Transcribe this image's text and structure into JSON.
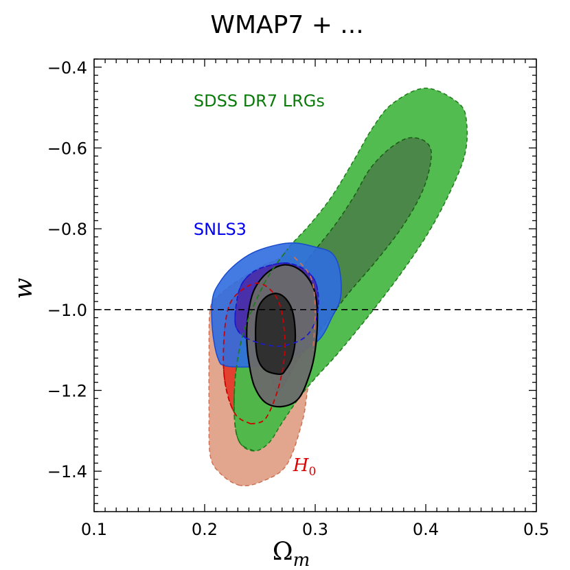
{
  "chart_data": {
    "type": "contour",
    "title": "WMAP7 + ...",
    "xlabel": "Ω",
    "xlabel_sub": "m",
    "ylabel": "w",
    "xlim": [
      0.1,
      0.5
    ],
    "ylim": [
      -1.5,
      -0.38
    ],
    "x_ticks": [
      0.1,
      0.2,
      0.3,
      0.4,
      0.5
    ],
    "x_tick_labels": [
      "0.1",
      "0.2",
      "0.3",
      "0.4",
      "0.5"
    ],
    "y_ticks": [
      -1.4,
      -1.2,
      -1.0,
      -0.8,
      -0.6,
      -0.4
    ],
    "y_tick_labels": [
      "−1.4",
      "−1.2",
      "−1.0",
      "−0.8",
      "−0.6",
      "−0.4"
    ],
    "reference_line": {
      "y": -1.0,
      "style": "dashed",
      "color": "#000000"
    },
    "series": [
      {
        "key": "h0",
        "name": "H",
        "name_sub": "0",
        "label_color": "#dd0000",
        "outer": {
          "fill": "#e0a088",
          "stroke": "#d07050",
          "dashed": true,
          "opacity": 0.95,
          "points": [
            [
              0.232,
              -1.435
            ],
            [
              0.214,
              -1.405
            ],
            [
              0.205,
              -1.36
            ],
            [
              0.204,
              -1.25
            ],
            [
              0.204,
              -1.12
            ],
            [
              0.205,
              -1.0
            ],
            [
              0.213,
              -0.965
            ],
            [
              0.232,
              -0.925
            ],
            [
              0.258,
              -0.885
            ],
            [
              0.281,
              -0.87
            ],
            [
              0.296,
              -0.92
            ],
            [
              0.3,
              -1.0
            ],
            [
              0.298,
              -1.1
            ],
            [
              0.293,
              -1.2
            ],
            [
              0.288,
              -1.28
            ],
            [
              0.274,
              -1.385
            ],
            [
              0.252,
              -1.425
            ]
          ]
        },
        "inner": {
          "fill": "#e23b2a",
          "stroke": "#cc0000",
          "dashed": true,
          "opacity": 0.95,
          "points": [
            [
              0.242,
              -1.283
            ],
            [
              0.228,
              -1.26
            ],
            [
              0.219,
              -1.19
            ],
            [
              0.217,
              -1.1
            ],
            [
              0.221,
              -1.0
            ],
            [
              0.232,
              -0.955
            ],
            [
              0.25,
              -0.935
            ],
            [
              0.266,
              -0.975
            ],
            [
              0.272,
              -1.05
            ],
            [
              0.272,
              -1.12
            ],
            [
              0.266,
              -1.2
            ],
            [
              0.255,
              -1.27
            ]
          ]
        }
      },
      {
        "key": "lrg",
        "name": "SDSS DR7 LRGs",
        "label_color": "#0a7a0a",
        "outer": {
          "fill": "#4cba4a",
          "stroke": "#1f7a1a",
          "dashed": true,
          "opacity": 0.97,
          "points": [
            [
              0.245,
              -1.35
            ],
            [
              0.232,
              -1.33
            ],
            [
              0.227,
              -1.27
            ],
            [
              0.228,
              -1.16
            ],
            [
              0.236,
              -1.05
            ],
            [
              0.255,
              -0.93
            ],
            [
              0.275,
              -0.85
            ],
            [
              0.295,
              -0.79
            ],
            [
              0.315,
              -0.72
            ],
            [
              0.335,
              -0.63
            ],
            [
              0.352,
              -0.55
            ],
            [
              0.37,
              -0.49
            ],
            [
              0.4,
              -0.452
            ],
            [
              0.43,
              -0.49
            ],
            [
              0.437,
              -0.54
            ],
            [
              0.435,
              -0.62
            ],
            [
              0.42,
              -0.72
            ],
            [
              0.4,
              -0.82
            ],
            [
              0.375,
              -0.92
            ],
            [
              0.347,
              -1.02
            ],
            [
              0.32,
              -1.11
            ],
            [
              0.3,
              -1.17
            ],
            [
              0.285,
              -1.22
            ],
            [
              0.27,
              -1.28
            ],
            [
              0.258,
              -1.33
            ]
          ]
        },
        "inner": {
          "fill": "#4a8548",
          "stroke": "#1a5a15",
          "dashed": true,
          "opacity": 0.97,
          "points": [
            [
              0.265,
              -1.2
            ],
            [
              0.258,
              -1.12
            ],
            [
              0.262,
              -1.02
            ],
            [
              0.275,
              -0.95
            ],
            [
              0.295,
              -0.87
            ],
            [
              0.318,
              -0.79
            ],
            [
              0.335,
              -0.72
            ],
            [
              0.35,
              -0.65
            ],
            [
              0.368,
              -0.6
            ],
            [
              0.385,
              -0.575
            ],
            [
              0.4,
              -0.585
            ],
            [
              0.405,
              -0.62
            ],
            [
              0.398,
              -0.7
            ],
            [
              0.38,
              -0.79
            ],
            [
              0.355,
              -0.88
            ],
            [
              0.33,
              -0.96
            ],
            [
              0.305,
              -1.05
            ],
            [
              0.285,
              -1.12
            ],
            [
              0.275,
              -1.17
            ]
          ]
        }
      },
      {
        "key": "snls",
        "name": "SNLS3",
        "label_color": "#0000ee",
        "outer": {
          "fill": "#2f6de0",
          "stroke": "#1a4acc",
          "dashed": false,
          "opacity": 0.9,
          "points": [
            [
              0.22,
              -1.14
            ],
            [
              0.212,
              -1.12
            ],
            [
              0.207,
              -1.05
            ],
            [
              0.207,
              -0.975
            ],
            [
              0.213,
              -0.935
            ],
            [
              0.225,
              -0.895
            ],
            [
              0.243,
              -0.86
            ],
            [
              0.265,
              -0.84
            ],
            [
              0.282,
              -0.835
            ],
            [
              0.3,
              -0.845
            ],
            [
              0.315,
              -0.86
            ],
            [
              0.322,
              -0.9
            ],
            [
              0.323,
              -0.97
            ],
            [
              0.315,
              -1.02
            ],
            [
              0.305,
              -1.07
            ],
            [
              0.29,
              -1.1
            ],
            [
              0.272,
              -1.125
            ],
            [
              0.25,
              -1.14
            ]
          ]
        },
        "inner": {
          "fill": "#4a2aa6",
          "stroke": "#1a1acc",
          "dashed": true,
          "opacity": 0.9,
          "points": [
            [
              0.237,
              -1.07
            ],
            [
              0.228,
              -1.04
            ],
            [
              0.229,
              -0.98
            ],
            [
              0.234,
              -0.935
            ],
            [
              0.245,
              -0.905
            ],
            [
              0.26,
              -0.89
            ],
            [
              0.275,
              -0.885
            ],
            [
              0.29,
              -0.9
            ],
            [
              0.3,
              -0.93
            ],
            [
              0.303,
              -0.98
            ],
            [
              0.3,
              -1.03
            ],
            [
              0.29,
              -1.07
            ],
            [
              0.27,
              -1.09
            ],
            [
              0.252,
              -1.085
            ]
          ]
        }
      },
      {
        "key": "combined",
        "name": "",
        "outer": {
          "fill": "#6a6a6a",
          "stroke": "#000000",
          "dashed": false,
          "opacity": 0.95,
          "points": [
            [
              0.27,
              -1.24
            ],
            [
              0.255,
              -1.23
            ],
            [
              0.245,
              -1.19
            ],
            [
              0.24,
              -1.13
            ],
            [
              0.238,
              -1.06
            ],
            [
              0.24,
              -1.0
            ],
            [
              0.245,
              -0.95
            ],
            [
              0.256,
              -0.91
            ],
            [
              0.27,
              -0.89
            ],
            [
              0.282,
              -0.895
            ],
            [
              0.293,
              -0.92
            ],
            [
              0.3,
              -0.96
            ],
            [
              0.302,
              -1.02
            ],
            [
              0.3,
              -1.1
            ],
            [
              0.295,
              -1.16
            ],
            [
              0.285,
              -1.22
            ]
          ]
        },
        "inner": {
          "fill": "#2e2e2e",
          "stroke": "#000000",
          "dashed": false,
          "opacity": 0.97,
          "points": [
            [
              0.268,
              -1.16
            ],
            [
              0.255,
              -1.15
            ],
            [
              0.248,
              -1.12
            ],
            [
              0.246,
              -1.06
            ],
            [
              0.248,
              -1.0
            ],
            [
              0.255,
              -0.97
            ],
            [
              0.265,
              -0.96
            ],
            [
              0.274,
              -0.975
            ],
            [
              0.28,
              -1.01
            ],
            [
              0.282,
              -1.07
            ],
            [
              0.279,
              -1.12
            ],
            [
              0.273,
              -1.15
            ]
          ]
        }
      }
    ],
    "overlay_lines": [
      {
        "color": "#cc0000",
        "dashed": true,
        "points": [
          [
            0.242,
            -1.283
          ],
          [
            0.228,
            -1.26
          ],
          [
            0.219,
            -1.19
          ],
          [
            0.217,
            -1.1
          ],
          [
            0.221,
            -1.0
          ],
          [
            0.232,
            -0.955
          ],
          [
            0.25,
            -0.935
          ],
          [
            0.266,
            -0.975
          ],
          [
            0.272,
            -1.05
          ],
          [
            0.272,
            -1.12
          ],
          [
            0.266,
            -1.2
          ],
          [
            0.255,
            -1.27
          ],
          [
            0.242,
            -1.283
          ]
        ]
      },
      {
        "color": "#1a1acc",
        "dashed": true,
        "points": [
          [
            0.237,
            -1.07
          ],
          [
            0.228,
            -1.04
          ],
          [
            0.229,
            -0.98
          ],
          [
            0.234,
            -0.935
          ],
          [
            0.245,
            -0.905
          ],
          [
            0.26,
            -0.89
          ],
          [
            0.275,
            -0.885
          ],
          [
            0.29,
            -0.9
          ],
          [
            0.3,
            -0.93
          ],
          [
            0.303,
            -0.98
          ],
          [
            0.3,
            -1.03
          ],
          [
            0.29,
            -1.07
          ],
          [
            0.27,
            -1.09
          ],
          [
            0.252,
            -1.085
          ],
          [
            0.237,
            -1.07
          ]
        ]
      },
      {
        "color": "#1f7a1a",
        "dashed": true,
        "points": [
          [
            0.245,
            -1.35
          ],
          [
            0.232,
            -1.33
          ],
          [
            0.227,
            -1.27
          ],
          [
            0.228,
            -1.16
          ],
          [
            0.236,
            -1.05
          ],
          [
            0.255,
            -0.93
          ],
          [
            0.275,
            -0.85
          ]
        ]
      },
      {
        "color": "#d07050",
        "dashed": true,
        "points": [
          [
            0.281,
            -0.87
          ],
          [
            0.296,
            -0.92
          ],
          [
            0.3,
            -1.0
          ],
          [
            0.298,
            -1.1
          ]
        ]
      }
    ],
    "annotations": [
      {
        "key": "lrg_label",
        "text": "SDSS DR7 LRGs",
        "x": 0.19,
        "y": -0.497,
        "color": "#0a7a0a"
      },
      {
        "key": "snls_label",
        "text": "SNLS3",
        "x": 0.19,
        "y": -0.815,
        "color": "#0000ee"
      },
      {
        "key": "h0_label",
        "text": "H",
        "sub": "0",
        "x": 0.28,
        "y": -1.4,
        "color": "#dd0000"
      }
    ]
  }
}
